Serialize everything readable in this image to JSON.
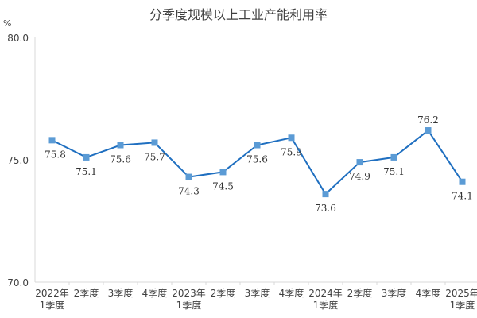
{
  "chart_data": {
    "type": "line",
    "title": "分季度规模以上工业产能利用率",
    "ylabel": "%",
    "ylim": [
      70.0,
      80.0
    ],
    "yticks": [
      "70.0",
      "75.0",
      "80.0"
    ],
    "yticks_values": [
      70,
      75,
      80
    ],
    "grid": false,
    "legend": "none",
    "categories": [
      [
        "2022年",
        "1季度"
      ],
      [
        "2季度"
      ],
      [
        "3季度"
      ],
      [
        "4季度"
      ],
      [
        "2023年",
        "1季度"
      ],
      [
        "2季度"
      ],
      [
        "3季度"
      ],
      [
        "4季度"
      ],
      [
        "2024年",
        "1季度"
      ],
      [
        "2季度"
      ],
      [
        "3季度"
      ],
      [
        "4季度"
      ],
      [
        "2025年",
        "1季度"
      ]
    ],
    "series": [
      {
        "values": [
          75.8,
          75.1,
          75.6,
          75.7,
          74.3,
          74.5,
          75.6,
          75.9,
          73.6,
          74.9,
          75.1,
          76.2,
          74.1
        ],
        "labels": [
          "75.8",
          "75.1",
          "75.6",
          "75.7",
          "74.3",
          "74.5",
          "75.6",
          "75.9",
          "73.6",
          "74.9",
          "75.1",
          "76.2",
          "74.1"
        ],
        "color": "#1f6fc0",
        "marker_color": "#5b9bd5"
      }
    ]
  }
}
